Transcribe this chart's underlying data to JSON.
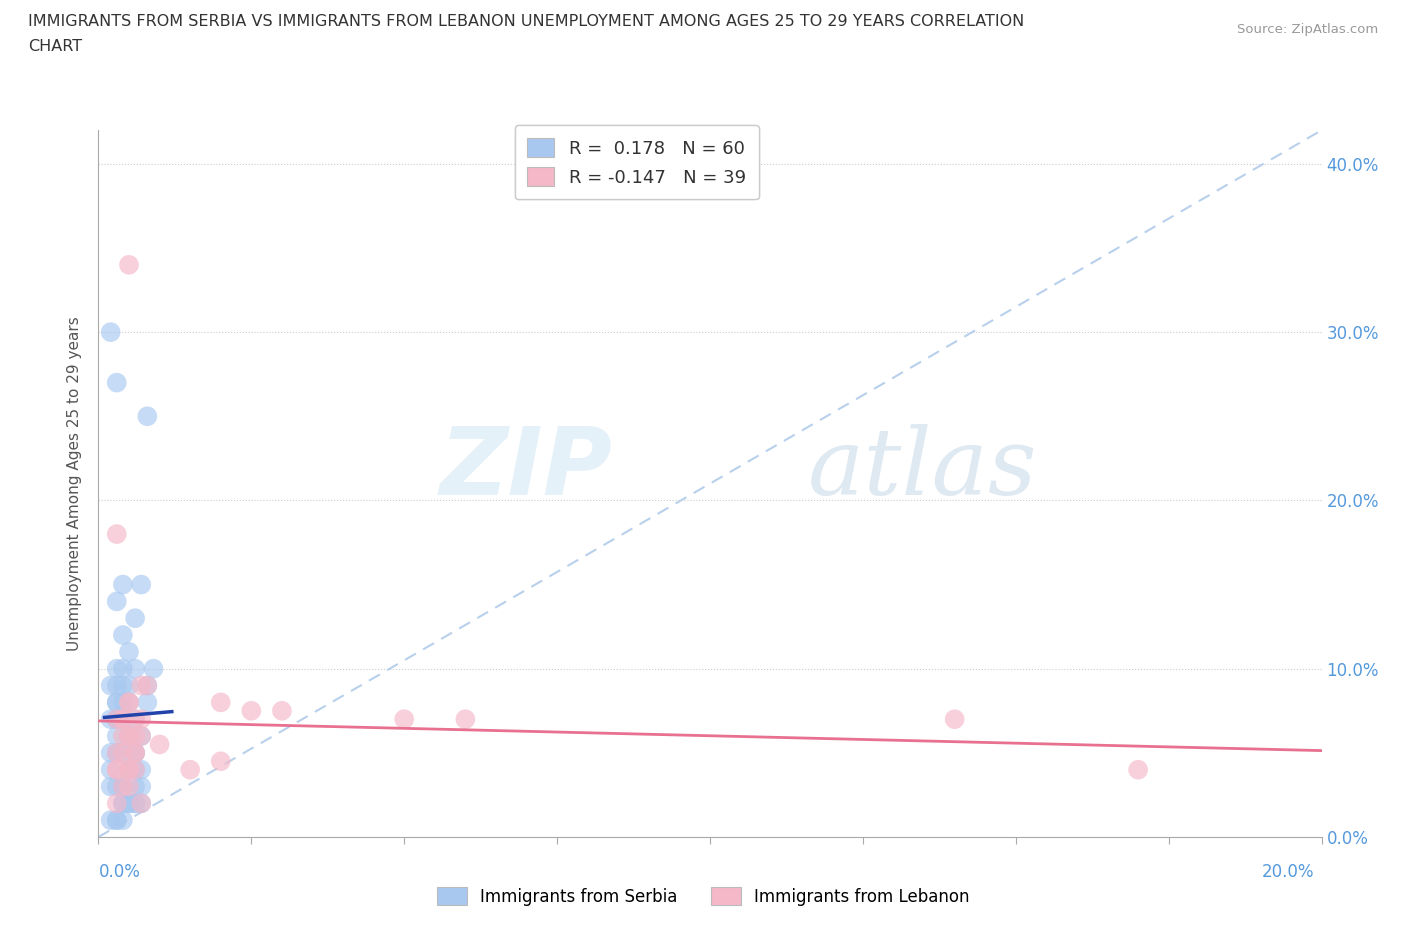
{
  "title_line1": "IMMIGRANTS FROM SERBIA VS IMMIGRANTS FROM LEBANON UNEMPLOYMENT AMONG AGES 25 TO 29 YEARS CORRELATION",
  "title_line2": "CHART",
  "source_text": "Source: ZipAtlas.com",
  "ylabel": "Unemployment Among Ages 25 to 29 years",
  "xlim": [
    0.0,
    0.2
  ],
  "ylim": [
    0.0,
    0.42
  ],
  "xticks": [
    0.0,
    0.2
  ],
  "yticks": [
    0.0,
    0.1,
    0.2,
    0.3,
    0.4
  ],
  "serbia_color": "#a8c8f0",
  "lebanon_color": "#f4b8c8",
  "serbia_line_color": "#2244aa",
  "lebanon_line_color": "#e87090",
  "diagonal_color": "#b8d0ec",
  "R_serbia": 0.178,
  "N_serbia": 60,
  "R_lebanon": -0.147,
  "N_lebanon": 39,
  "watermark_zip": "ZIP",
  "watermark_atlas": "atlas",
  "serbia_legend": "Immigrants from Serbia",
  "lebanon_legend": "Immigrants from Lebanon",
  "serbia_x": [
    0.005,
    0.002,
    0.003,
    0.008,
    0.003,
    0.004,
    0.006,
    0.007,
    0.004,
    0.003,
    0.002,
    0.005,
    0.006,
    0.008,
    0.003,
    0.004,
    0.005,
    0.006,
    0.007,
    0.003,
    0.002,
    0.004,
    0.003,
    0.005,
    0.006,
    0.004,
    0.007,
    0.003,
    0.002,
    0.005,
    0.006,
    0.004,
    0.003,
    0.008,
    0.009,
    0.005,
    0.004,
    0.003,
    0.002,
    0.006,
    0.005,
    0.004,
    0.003,
    0.002,
    0.007,
    0.004,
    0.005,
    0.003,
    0.006,
    0.007,
    0.004,
    0.003,
    0.005,
    0.006,
    0.004,
    0.003,
    0.005,
    0.004,
    0.002,
    0.006
  ],
  "serbia_y": [
    0.09,
    0.3,
    0.27,
    0.25,
    0.14,
    0.15,
    0.13,
    0.15,
    0.12,
    0.1,
    0.09,
    0.11,
    0.1,
    0.08,
    0.07,
    0.09,
    0.08,
    0.07,
    0.06,
    0.08,
    0.07,
    0.1,
    0.09,
    0.06,
    0.05,
    0.08,
    0.04,
    0.07,
    0.05,
    0.06,
    0.04,
    0.03,
    0.05,
    0.09,
    0.1,
    0.06,
    0.07,
    0.08,
    0.03,
    0.02,
    0.04,
    0.05,
    0.06,
    0.04,
    0.03,
    0.02,
    0.04,
    0.03,
    0.05,
    0.02,
    0.03,
    0.01,
    0.02,
    0.03,
    0.02,
    0.01,
    0.02,
    0.01,
    0.01,
    0.02
  ],
  "lebanon_x": [
    0.005,
    0.005,
    0.003,
    0.004,
    0.007,
    0.003,
    0.006,
    0.004,
    0.005,
    0.007,
    0.008,
    0.003,
    0.005,
    0.006,
    0.02,
    0.025,
    0.03,
    0.05,
    0.06,
    0.003,
    0.004,
    0.005,
    0.006,
    0.007,
    0.004,
    0.005,
    0.006,
    0.005,
    0.007,
    0.006,
    0.003,
    0.004,
    0.005,
    0.01,
    0.015,
    0.02,
    0.17,
    0.003,
    0.14
  ],
  "lebanon_y": [
    0.08,
    0.34,
    0.07,
    0.07,
    0.07,
    0.18,
    0.07,
    0.06,
    0.08,
    0.09,
    0.09,
    0.05,
    0.04,
    0.06,
    0.08,
    0.075,
    0.075,
    0.07,
    0.07,
    0.04,
    0.05,
    0.03,
    0.04,
    0.02,
    0.07,
    0.06,
    0.05,
    0.04,
    0.06,
    0.05,
    0.04,
    0.03,
    0.06,
    0.055,
    0.04,
    0.045,
    0.04,
    0.02,
    0.07
  ]
}
